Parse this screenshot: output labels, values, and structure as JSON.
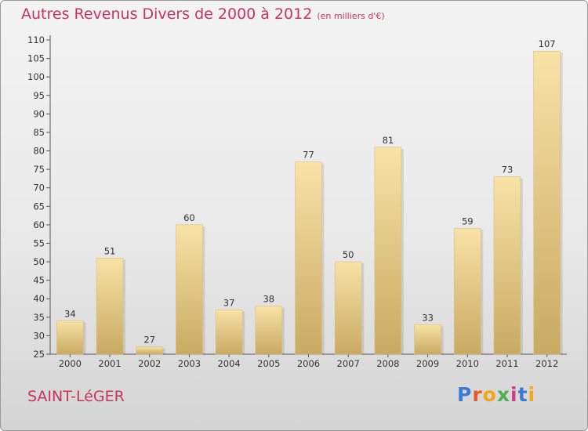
{
  "title": "Autres Revenus Divers de 2000 à 2012",
  "subtitle": "(en milliers d'€)",
  "place": "SAINT-LéGER",
  "logo": "Proxiti",
  "colors": {
    "title": "#c8345e",
    "bar_light": "#f8e2a6",
    "bar_dark": "#c8aa62"
  },
  "chart_data": {
    "type": "bar",
    "title": "Autres Revenus Divers de 2000 à 2012",
    "subtitle": "(en milliers d'€)",
    "categories": [
      "2000",
      "2001",
      "2002",
      "2003",
      "2004",
      "2005",
      "2006",
      "2007",
      "2008",
      "2009",
      "2010",
      "2011",
      "2012"
    ],
    "values": [
      34,
      51,
      27,
      60,
      37,
      38,
      77,
      50,
      81,
      33,
      59,
      73,
      107
    ],
    "ylim": [
      25,
      110
    ],
    "yticks": [
      25,
      30,
      35,
      40,
      45,
      50,
      55,
      60,
      65,
      70,
      75,
      80,
      85,
      90,
      95,
      100,
      105,
      110
    ],
    "xlabel": "",
    "ylabel": "",
    "grid": false,
    "legend": "none",
    "data_labels": true
  }
}
